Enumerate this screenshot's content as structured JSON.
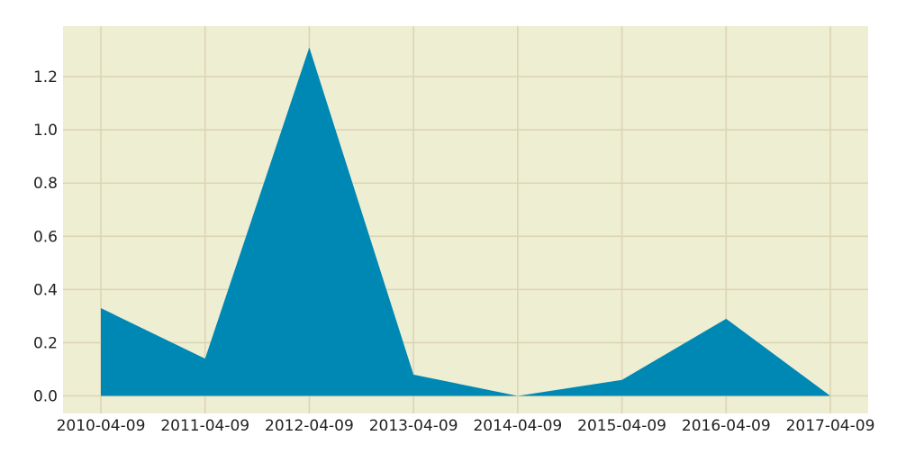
{
  "chart_data": {
    "type": "area",
    "title": "",
    "xlabel": "",
    "ylabel": "",
    "categories": [
      "2010-04-09",
      "2011-04-09",
      "2012-04-09",
      "2013-04-09",
      "2014-04-09",
      "2015-04-09",
      "2016-04-09",
      "2017-04-09"
    ],
    "values": [
      0.33,
      0.14,
      1.31,
      0.08,
      0.0,
      0.06,
      0.29,
      0.0
    ],
    "yticks": [
      0.0,
      0.2,
      0.4,
      0.6,
      0.8,
      1.0,
      1.2
    ],
    "ytick_labels": [
      "0.0",
      "0.2",
      "0.4",
      "0.6",
      "0.8",
      "1.0",
      "1.2"
    ],
    "ylim": [
      -0.066,
      1.39
    ],
    "grid": true,
    "colors": {
      "fill": "#0088B4",
      "plot_background": "#EEEED3",
      "grid": "#DCD5B4",
      "text": "#222222"
    }
  }
}
